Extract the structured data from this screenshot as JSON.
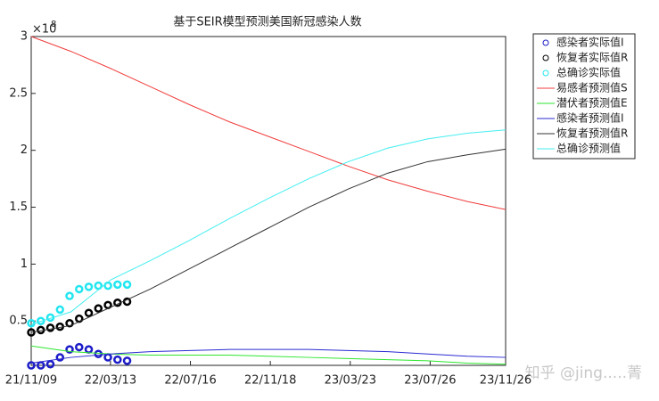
{
  "chart_data": {
    "type": "line",
    "title": "基于SEIR模型预测美国新冠感染人数",
    "y_exponent": {
      "base": "×10",
      "power": "8"
    },
    "watermark": "知乎 @jing.....菁",
    "xlim": [
      0,
      742
    ],
    "ylim": [
      0.11,
      3
    ],
    "xticks": [
      {
        "value": 0,
        "label": "21/11/09"
      },
      {
        "value": 124,
        "label": "22/03/13"
      },
      {
        "value": 249,
        "label": "22/07/16"
      },
      {
        "value": 374,
        "label": "22/11/18"
      },
      {
        "value": 499,
        "label": "23/03/23"
      },
      {
        "value": 624,
        "label": "23/07/26"
      },
      {
        "value": 742,
        "label": "23/11/26"
      }
    ],
    "yticks": [
      0.5,
      1,
      1.5,
      2,
      2.5,
      3
    ],
    "legend": "outside-top-right",
    "series": [
      {
        "name": "感染者实际值I",
        "style": "marker",
        "color": "#1c1cc8",
        "x": [
          0,
          15,
          30,
          45,
          60,
          75,
          90,
          105,
          120,
          135,
          150
        ],
        "values": [
          0.11,
          0.11,
          0.12,
          0.18,
          0.25,
          0.27,
          0.25,
          0.21,
          0.18,
          0.16,
          0.15
        ]
      },
      {
        "name": "恢复者实际值R",
        "style": "marker",
        "color": "#000000",
        "x": [
          0,
          15,
          30,
          45,
          60,
          75,
          90,
          105,
          120,
          135,
          150
        ],
        "values": [
          0.4,
          0.42,
          0.44,
          0.45,
          0.48,
          0.52,
          0.57,
          0.61,
          0.64,
          0.66,
          0.67
        ]
      },
      {
        "name": "总确诊实际值",
        "style": "marker",
        "color": "#22e6f0",
        "x": [
          0,
          15,
          30,
          45,
          60,
          75,
          90,
          105,
          120,
          135,
          150
        ],
        "values": [
          0.48,
          0.5,
          0.53,
          0.6,
          0.72,
          0.78,
          0.8,
          0.81,
          0.81,
          0.82,
          0.82
        ]
      },
      {
        "name": "易感者预测值S",
        "style": "line",
        "color": "#f03c3c",
        "x": [
          0,
          62,
          124,
          186,
          248,
          310,
          372,
          434,
          496,
          558,
          620,
          682,
          742
        ],
        "values": [
          3.0,
          2.87,
          2.72,
          2.56,
          2.4,
          2.25,
          2.12,
          1.99,
          1.86,
          1.74,
          1.64,
          1.55,
          1.48
        ]
      },
      {
        "name": "潜伏者预测值E",
        "style": "line",
        "color": "#2ee62e",
        "x": [
          0,
          62,
          124,
          186,
          248,
          310,
          372,
          434,
          496,
          558,
          620,
          682,
          742
        ],
        "values": [
          0.28,
          0.23,
          0.21,
          0.2,
          0.2,
          0.2,
          0.19,
          0.18,
          0.17,
          0.16,
          0.15,
          0.13,
          0.12
        ]
      },
      {
        "name": "感染者预测值I",
        "style": "line",
        "color": "#2a2ad2",
        "x": [
          0,
          62,
          124,
          186,
          248,
          310,
          372,
          434,
          496,
          558,
          620,
          682,
          742
        ],
        "values": [
          0.13,
          0.18,
          0.21,
          0.23,
          0.24,
          0.25,
          0.25,
          0.25,
          0.24,
          0.23,
          0.21,
          0.19,
          0.18
        ]
      },
      {
        "name": "恢复者预测值R",
        "style": "line",
        "color": "#333333",
        "x": [
          0,
          62,
          124,
          186,
          248,
          310,
          372,
          434,
          496,
          558,
          620,
          682,
          742
        ],
        "values": [
          0.4,
          0.46,
          0.62,
          0.78,
          0.96,
          1.14,
          1.32,
          1.5,
          1.66,
          1.8,
          1.9,
          1.96,
          2.01
        ]
      },
      {
        "name": "总确诊预测值",
        "style": "line",
        "color": "#44eef0",
        "x": [
          0,
          62,
          124,
          186,
          248,
          310,
          372,
          434,
          496,
          558,
          620,
          682,
          742
        ],
        "values": [
          0.47,
          0.58,
          0.86,
          1.03,
          1.21,
          1.4,
          1.58,
          1.75,
          1.9,
          2.02,
          2.1,
          2.15,
          2.18
        ]
      }
    ]
  }
}
